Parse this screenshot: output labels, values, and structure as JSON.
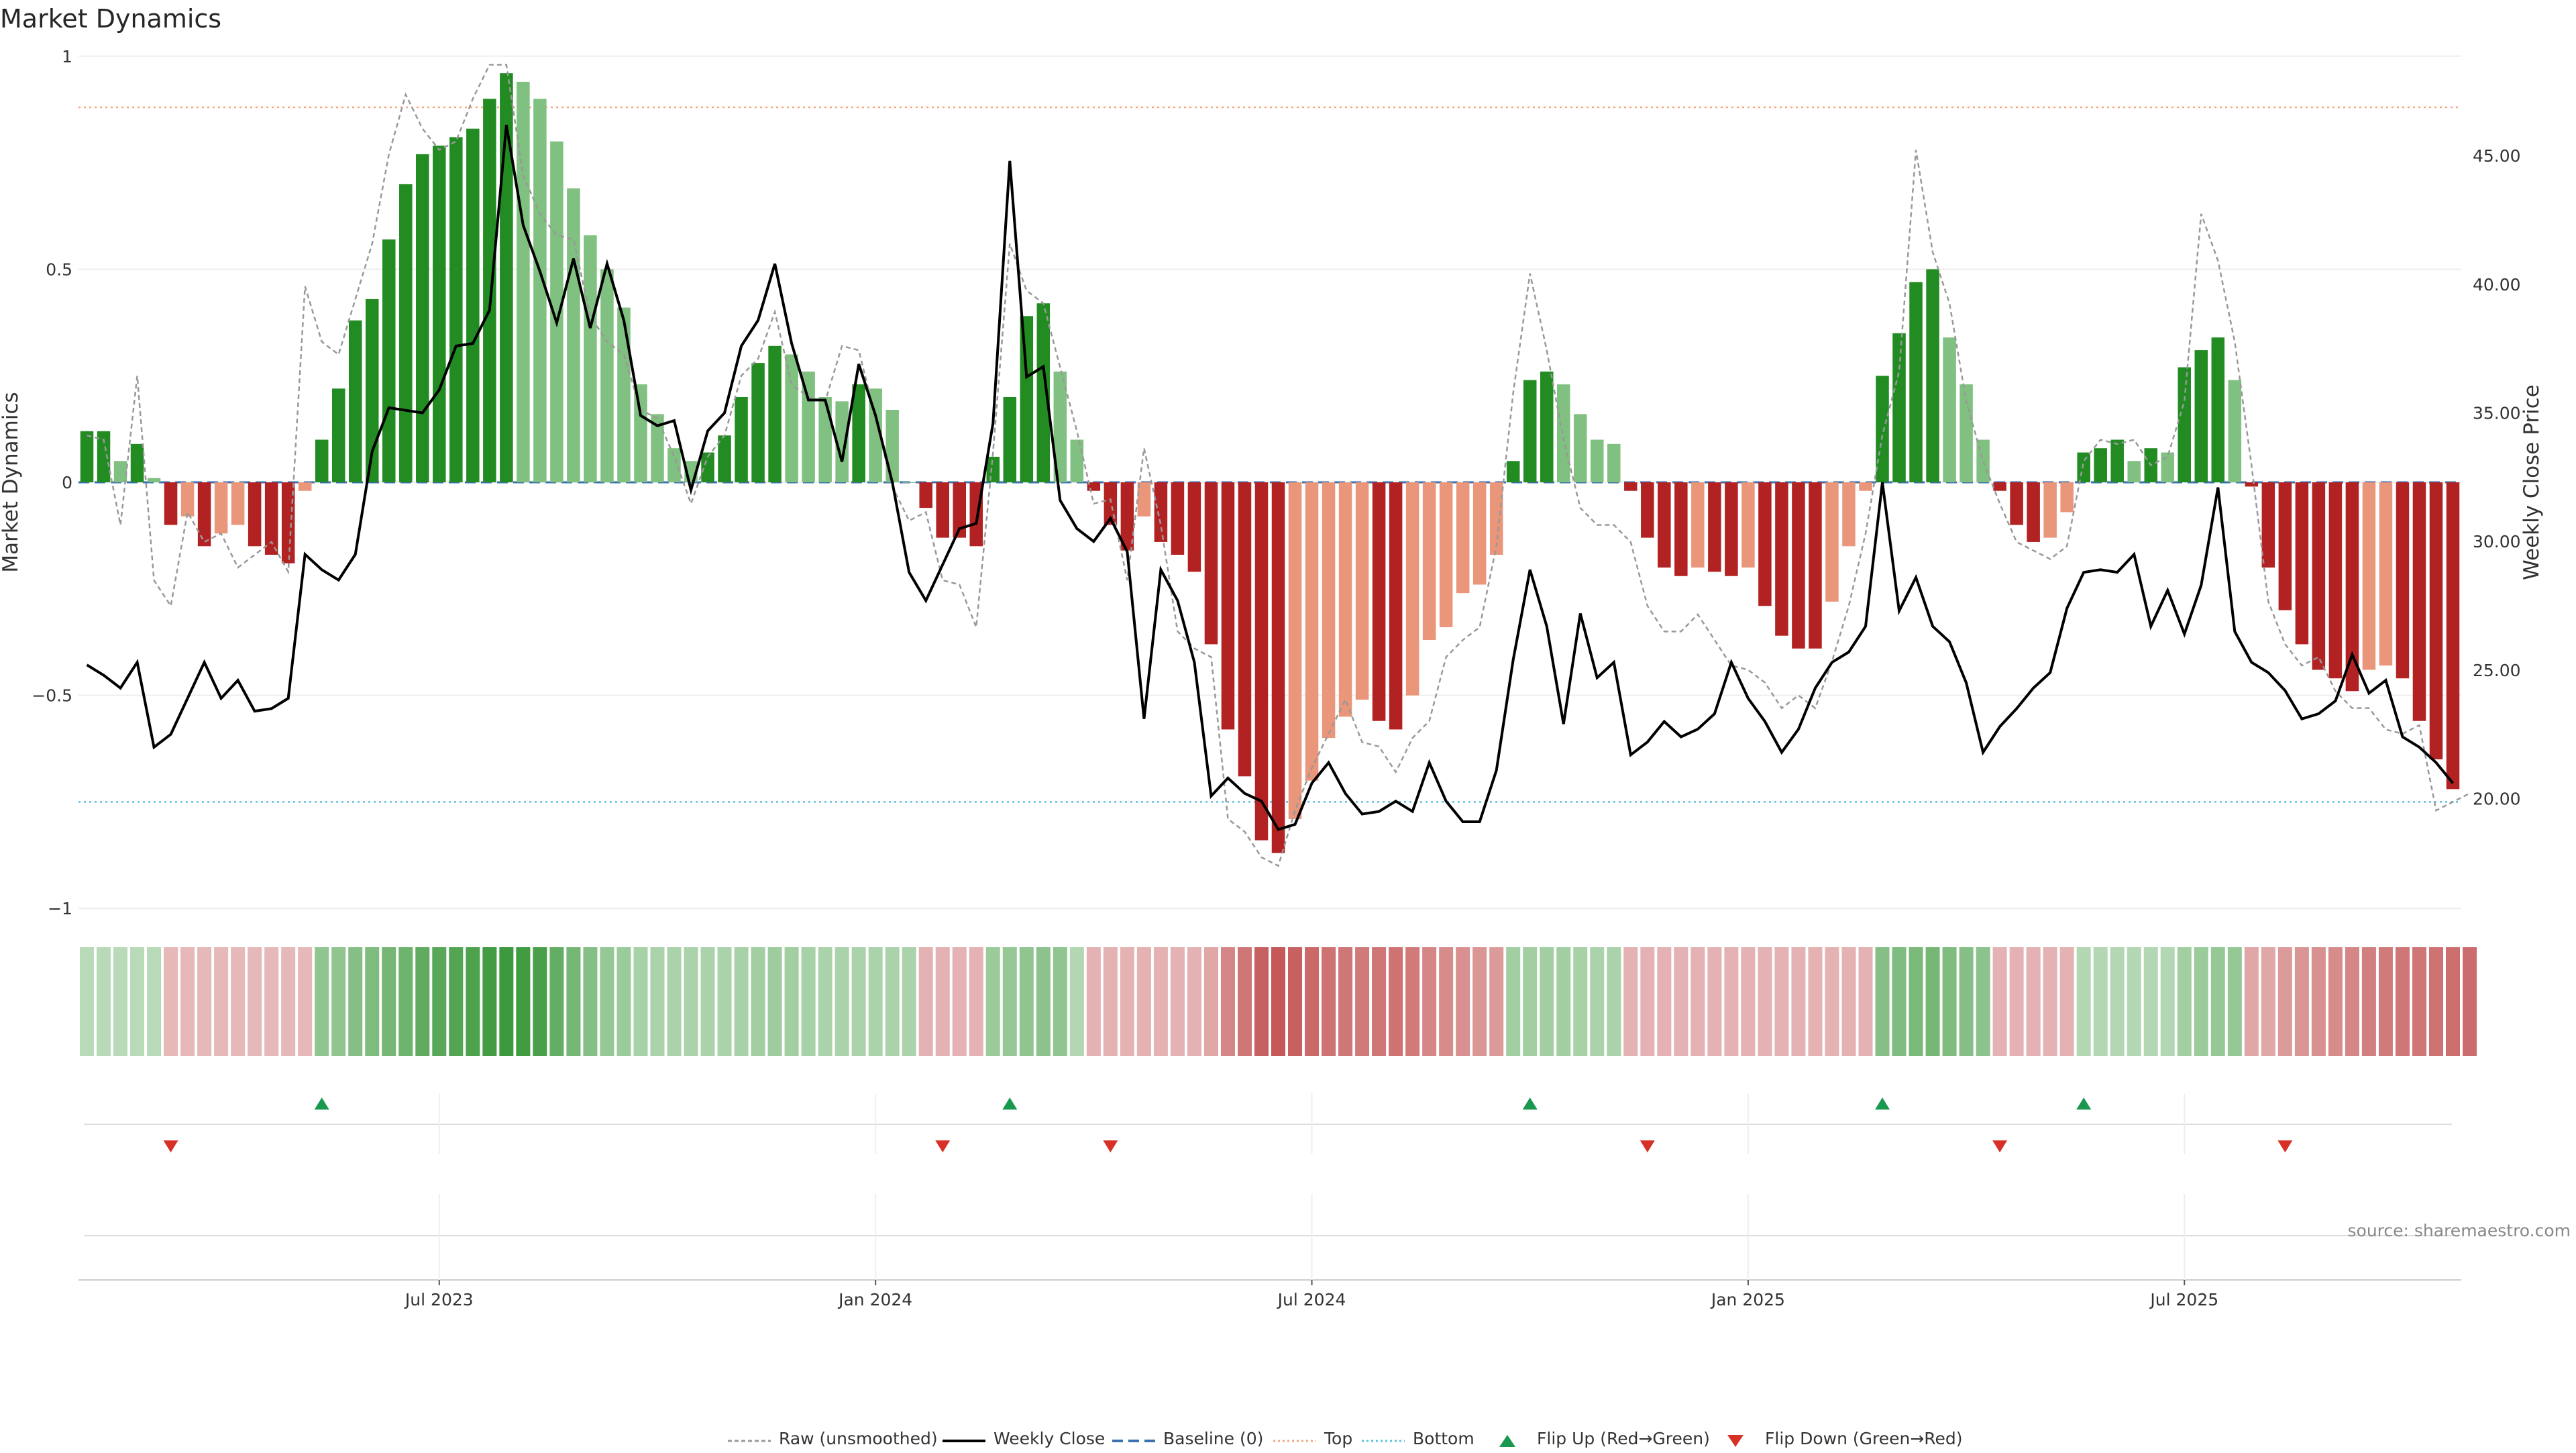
{
  "title": "Market Dynamics",
  "source_text": "source: sharemaestro.com",
  "legend": {
    "raw": "Raw (unsmoothed)",
    "weekly_close": "Weekly Close",
    "baseline": "Baseline (0)",
    "top": "Top",
    "bottom": "Bottom",
    "flip_up": "Flip Up (Red→Green)",
    "flip_down": "Flip Down (Green→Red)"
  },
  "colors": {
    "green_strong": "#228b22",
    "green_light": "#80c080",
    "red_strong": "#b22222",
    "red_light": "#e9967a",
    "price_line": "#000000",
    "raw_line": "#999999",
    "baseline": "#3a6fb0",
    "top": "#f4a582",
    "bottom": "#5bc0de",
    "flip_up": "#1a9850",
    "flip_down": "#d73027"
  },
  "chart_data": {
    "type": "bar",
    "x_axis": {
      "tick_labels": [
        "Jul 2023",
        "Jan 2024",
        "Jul 2024",
        "Jan 2025",
        "Jul 2025"
      ],
      "tick_weeks": [
        21.5,
        47.5,
        73.5,
        99.5,
        125.5
      ]
    },
    "left_axis": {
      "label": "Market Dynamics",
      "ylim": [
        -1.05,
        1.05
      ],
      "ticks": [
        "1",
        "0.5",
        "0",
        "−0.5",
        "−1"
      ],
      "tick_values": [
        1,
        0.5,
        0,
        -0.5,
        -1
      ]
    },
    "right_axis": {
      "label": "Weekly Close Price",
      "ylim": [
        14.9,
        49.7
      ],
      "ticks": [
        "45.00",
        "40.00",
        "35.00",
        "30.00",
        "25.00",
        "20.00"
      ],
      "tick_values": [
        45,
        40,
        35,
        30,
        25,
        20
      ]
    },
    "reference_lines": {
      "baseline": 0,
      "top": 0.88,
      "bottom": -0.75
    },
    "series": [
      {
        "name": "Market Dynamics",
        "values": [
          0.12,
          0.12,
          0.05,
          0.09,
          0.01,
          -0.1,
          -0.08,
          -0.15,
          -0.12,
          -0.1,
          -0.15,
          -0.17,
          -0.19,
          -0.02,
          0.1,
          0.22,
          0.38,
          0.43,
          0.57,
          0.7,
          0.77,
          0.79,
          0.81,
          0.83,
          0.9,
          0.96,
          0.94,
          0.9,
          0.8,
          0.69,
          0.58,
          0.5,
          0.41,
          0.23,
          0.16,
          0.08,
          0.05,
          0.07,
          0.11,
          0.2,
          0.28,
          0.32,
          0.3,
          0.26,
          0.2,
          0.19,
          0.23,
          0.22,
          0.17,
          0.0,
          -0.06,
          -0.13,
          -0.13,
          -0.15,
          0.06,
          0.2,
          0.39,
          0.42,
          0.26,
          0.1,
          -0.02,
          -0.1,
          -0.16,
          -0.08,
          -0.14,
          -0.17,
          -0.21,
          -0.38,
          -0.58,
          -0.69,
          -0.84,
          -0.87,
          -0.79,
          -0.7,
          -0.6,
          -0.55,
          -0.51,
          -0.56,
          -0.58,
          -0.5,
          -0.37,
          -0.34,
          -0.26,
          -0.24,
          -0.17,
          0.05,
          0.24,
          0.26,
          0.23,
          0.16,
          0.1,
          0.09,
          -0.02,
          -0.13,
          -0.2,
          -0.22,
          -0.2,
          -0.21,
          -0.22,
          -0.2,
          -0.29,
          -0.36,
          -0.39,
          -0.39,
          -0.28,
          -0.15,
          -0.02,
          0.25,
          0.35,
          0.47,
          0.5,
          0.34,
          0.23,
          0.1,
          -0.02,
          -0.1,
          -0.14,
          -0.13,
          -0.07,
          0.07,
          0.08,
          0.1,
          0.05,
          0.08,
          0.07,
          0.27,
          0.31,
          0.34,
          0.24,
          -0.01,
          -0.2,
          -0.3,
          -0.38,
          -0.44,
          -0.46,
          -0.49,
          -0.44,
          -0.43,
          -0.46,
          -0.56,
          -0.65,
          -0.72
        ]
      },
      {
        "name": "Raw (unsmoothed)",
        "values": [
          0.11,
          0.1,
          -0.1,
          0.25,
          -0.23,
          -0.29,
          -0.07,
          -0.14,
          -0.12,
          -0.2,
          -0.17,
          -0.14,
          -0.21,
          0.46,
          0.33,
          0.3,
          0.43,
          0.56,
          0.77,
          0.91,
          0.83,
          0.78,
          0.8,
          0.9,
          0.98,
          0.98,
          0.72,
          0.63,
          0.58,
          0.57,
          0.39,
          0.33,
          0.3,
          0.17,
          0.15,
          0.06,
          -0.05,
          0.06,
          0.11,
          0.25,
          0.29,
          0.4,
          0.23,
          0.2,
          0.19,
          0.32,
          0.31,
          0.15,
          -0.01,
          -0.09,
          -0.07,
          -0.23,
          -0.24,
          -0.34,
          0.07,
          0.56,
          0.45,
          0.42,
          0.27,
          0.12,
          -0.05,
          -0.04,
          -0.23,
          0.08,
          -0.1,
          -0.35,
          -0.39,
          -0.41,
          -0.79,
          -0.82,
          -0.88,
          -0.9,
          -0.77,
          -0.67,
          -0.59,
          -0.51,
          -0.61,
          -0.62,
          -0.68,
          -0.6,
          -0.56,
          -0.41,
          -0.37,
          -0.34,
          -0.15,
          0.21,
          0.49,
          0.31,
          0.1,
          -0.06,
          -0.1,
          -0.1,
          -0.14,
          -0.29,
          -0.35,
          -0.35,
          -0.31,
          -0.37,
          -0.43,
          -0.44,
          -0.47,
          -0.53,
          -0.5,
          -0.53,
          -0.42,
          -0.29,
          -0.12,
          0.11,
          0.26,
          0.78,
          0.54,
          0.42,
          0.19,
          0.05,
          -0.05,
          -0.14,
          -0.16,
          -0.18,
          -0.15,
          0.05,
          0.1,
          0.09,
          0.1,
          0.04,
          0.06,
          0.19,
          0.63,
          0.52,
          0.33,
          0.04,
          -0.28,
          -0.38,
          -0.43,
          -0.41,
          -0.49,
          -0.53,
          -0.53,
          -0.58,
          -0.59,
          -0.57,
          -0.77,
          -0.75,
          -0.73
        ]
      },
      {
        "name": "Weekly Close",
        "values": [
          25.2,
          24.8,
          24.3,
          25.3,
          22.0,
          22.5,
          23.9,
          25.3,
          23.9,
          24.6,
          23.4,
          23.5,
          23.9,
          29.5,
          28.9,
          28.5,
          29.5,
          33.5,
          35.2,
          35.1,
          35.0,
          35.9,
          37.6,
          37.7,
          39.0,
          46.2,
          42.3,
          40.5,
          38.5,
          41.0,
          38.3,
          40.8,
          38.6,
          34.9,
          34.5,
          34.7,
          32.0,
          34.3,
          35.0,
          37.6,
          38.6,
          40.8,
          37.7,
          35.5,
          35.5,
          33.1,
          36.9,
          34.9,
          32.3,
          28.8,
          27.7,
          29.1,
          30.5,
          30.7,
          34.6,
          44.8,
          36.4,
          36.8,
          31.6,
          30.5,
          30.0,
          30.9,
          29.6,
          23.1,
          28.9,
          27.7,
          25.3,
          20.1,
          20.8,
          20.2,
          19.9,
          18.8,
          19.0,
          20.6,
          21.4,
          20.2,
          19.4,
          19.5,
          19.9,
          19.5,
          21.4,
          19.9,
          19.1,
          19.1,
          21.1,
          25.4,
          28.9,
          26.7,
          22.9,
          27.2,
          24.7,
          25.3,
          21.7,
          22.2,
          23.0,
          22.4,
          22.7,
          23.3,
          25.3,
          23.9,
          23.0,
          21.8,
          22.7,
          24.3,
          25.3,
          25.7,
          26.7,
          32.3,
          27.3,
          28.6,
          26.7,
          26.1,
          24.5,
          21.8,
          22.8,
          23.5,
          24.3,
          24.9,
          27.4,
          28.8,
          28.9,
          28.8,
          29.5,
          26.7,
          28.1,
          26.4,
          28.3,
          32.1,
          26.5,
          25.3,
          24.9,
          24.2,
          23.1,
          23.3,
          23.8,
          25.6,
          24.1,
          24.6,
          22.4,
          22.0,
          21.4,
          20.6
        ]
      }
    ],
    "regime_intensity": [
      0.32,
      0.32,
      0.32,
      0.32,
      0.32,
      0.32,
      0.32,
      0.32,
      0.32,
      0.32,
      0.32,
      0.32,
      0.32,
      0.32,
      0.5,
      0.5,
      0.55,
      0.58,
      0.62,
      0.66,
      0.72,
      0.75,
      0.78,
      0.8,
      0.85,
      0.88,
      0.86,
      0.82,
      0.7,
      0.62,
      0.55,
      0.48,
      0.45,
      0.4,
      0.38,
      0.38,
      0.38,
      0.38,
      0.38,
      0.4,
      0.42,
      0.44,
      0.42,
      0.4,
      0.38,
      0.38,
      0.38,
      0.38,
      0.38,
      0.38,
      0.35,
      0.35,
      0.35,
      0.35,
      0.45,
      0.48,
      0.5,
      0.52,
      0.5,
      0.35,
      0.35,
      0.35,
      0.35,
      0.35,
      0.35,
      0.35,
      0.35,
      0.4,
      0.55,
      0.62,
      0.72,
      0.75,
      0.72,
      0.68,
      0.64,
      0.62,
      0.6,
      0.62,
      0.64,
      0.6,
      0.55,
      0.52,
      0.5,
      0.48,
      0.45,
      0.42,
      0.42,
      0.42,
      0.42,
      0.4,
      0.38,
      0.38,
      0.35,
      0.35,
      0.35,
      0.35,
      0.35,
      0.35,
      0.35,
      0.35,
      0.35,
      0.35,
      0.35,
      0.35,
      0.35,
      0.35,
      0.35,
      0.55,
      0.58,
      0.6,
      0.62,
      0.58,
      0.55,
      0.52,
      0.35,
      0.35,
      0.35,
      0.35,
      0.35,
      0.35,
      0.35,
      0.35,
      0.35,
      0.35,
      0.35,
      0.42,
      0.45,
      0.48,
      0.48,
      0.4,
      0.4,
      0.45,
      0.48,
      0.5,
      0.52,
      0.55,
      0.58,
      0.6,
      0.62,
      0.62,
      0.64,
      0.65,
      0.66
    ],
    "flip_up_weeks": [
      14,
      55,
      86,
      107,
      119
    ],
    "flip_down_weeks": [
      5,
      51,
      61,
      93,
      114,
      131
    ],
    "reference_line_values": {
      "Baseline (0)": 0,
      "Top": 0.88,
      "Bottom": -0.75
    }
  }
}
